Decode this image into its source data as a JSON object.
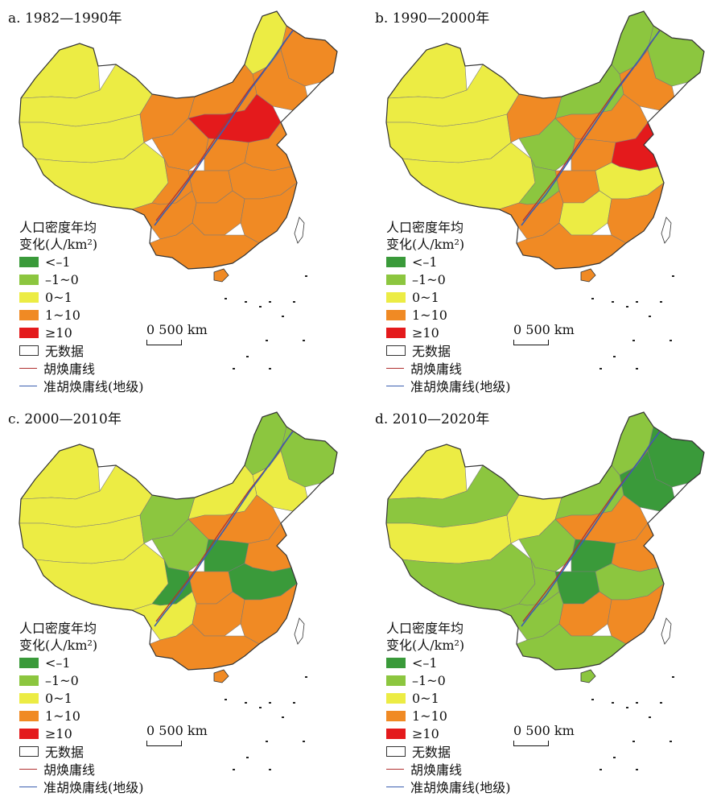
{
  "panels": [
    {
      "title": "a. 1982—1990年",
      "scheme": "a"
    },
    {
      "title": "b. 1990—2000年",
      "scheme": "b"
    },
    {
      "title": "c. 2000—2010年",
      "scheme": "c"
    },
    {
      "title": "d. 2010—2020年",
      "scheme": "d"
    }
  ],
  "legend": {
    "title_line1": "人口密度年均",
    "title_line2": "变化(人/km²)",
    "classes": [
      {
        "label": "<–1",
        "color": "#3a9a3a"
      },
      {
        "label": "–1~0",
        "color": "#8cc63f"
      },
      {
        "label": "0~1",
        "color": "#ecec44"
      },
      {
        "label": "1~10",
        "color": "#f08a24"
      },
      {
        "label": "≥10",
        "color": "#e41a1c"
      },
      {
        "label": "无数据",
        "color": "#ffffff"
      }
    ],
    "lines": [
      {
        "label": "胡焕庸线",
        "color": "#b03030"
      },
      {
        "label": "准胡焕庸线(地级)",
        "color": "#3b5fb0"
      }
    ]
  },
  "scale": {
    "label": "0    500 km"
  },
  "colors": {
    "lt_neg1": "#3a9a3a",
    "neg1_0": "#8cc63f",
    "zero_1": "#ecec44",
    "one_10": "#f08a24",
    "ge_10": "#e41a1c",
    "border": "#7a7a7a",
    "outline": "#333333",
    "hu_line": "#b03030",
    "quasi_hu_line": "#3b5fb0"
  }
}
